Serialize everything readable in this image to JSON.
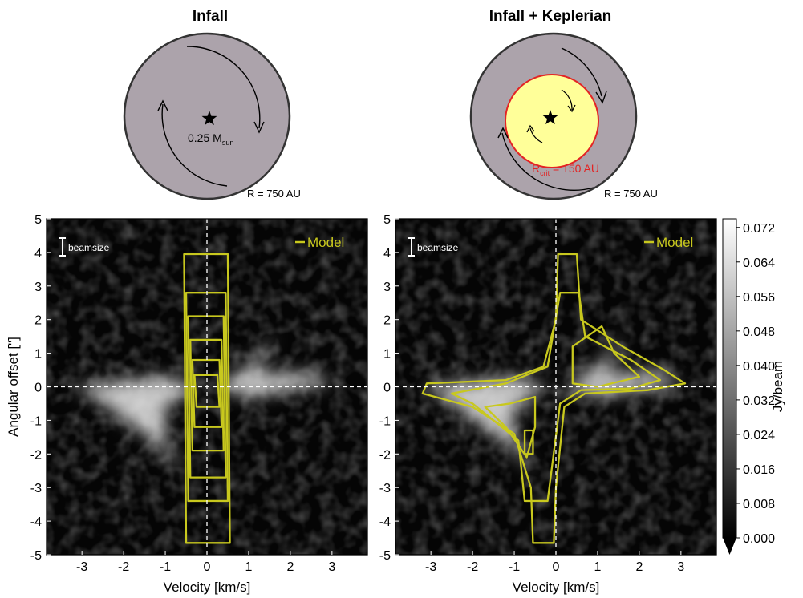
{
  "schematics": [
    {
      "title": "Infall",
      "star_label": "0.25 M",
      "star_label_sub": "sun",
      "radius_label": "R = 750 AU"
    },
    {
      "title": "Infall + Keplerian",
      "crit_label": "R",
      "crit_label_sub": "crit",
      "crit_label_rest": " = 150 AU",
      "radius_label": "R = 750 AU"
    }
  ],
  "colors": {
    "model": "#c8c81e",
    "disk_gray": "#aca3ab",
    "kepler_yellow": "#ffff99",
    "crit_red": "#e32424"
  },
  "colorbar": {
    "label": "Jy/beam",
    "ticks": [
      "0.000",
      "0.008",
      "0.016",
      "0.024",
      "0.032",
      "0.040",
      "0.048",
      "0.056",
      "0.064",
      "0.072"
    ],
    "range": [
      0,
      0.074
    ]
  },
  "chart_data": [
    {
      "type": "heatmap",
      "panel": "Infall",
      "xlabel": "Velocity [km/s]",
      "ylabel": "Angular offset [\"]",
      "xlim": [
        -3.85,
        3.85
      ],
      "ylim": [
        -5,
        5
      ],
      "xticks": [
        "-3",
        "-2",
        "-1",
        "0",
        "1",
        "2",
        "3"
      ],
      "yticks": [
        "-5",
        "-4",
        "-3",
        "-2",
        "-1",
        "0",
        "1",
        "2",
        "3",
        "4",
        "5"
      ],
      "legend": "Model",
      "beam_label": "beamsize",
      "model_contours": [
        [
          [
            -0.55,
            3.95
          ],
          [
            0.5,
            3.95
          ],
          [
            0.55,
            -4.65
          ],
          [
            -0.5,
            -4.65
          ]
        ],
        [
          [
            -0.5,
            2.8
          ],
          [
            0.45,
            2.8
          ],
          [
            0.5,
            -3.4
          ],
          [
            -0.45,
            -3.4
          ]
        ],
        [
          [
            -0.45,
            2.1
          ],
          [
            0.4,
            2.1
          ],
          [
            0.45,
            -2.7
          ],
          [
            -0.4,
            -2.7
          ]
        ],
        [
          [
            -0.4,
            1.4
          ],
          [
            0.35,
            1.4
          ],
          [
            0.4,
            -1.9
          ],
          [
            -0.35,
            -1.9
          ]
        ],
        [
          [
            -0.35,
            0.8
          ],
          [
            0.3,
            0.8
          ],
          [
            0.35,
            -1.2
          ],
          [
            -0.3,
            -1.2
          ]
        ],
        [
          [
            -0.3,
            0.35
          ],
          [
            0.25,
            0.35
          ],
          [
            0.3,
            -0.6
          ],
          [
            -0.25,
            -0.6
          ]
        ]
      ]
    },
    {
      "type": "heatmap",
      "panel": "Infall + Keplerian",
      "xlabel": "Velocity [km/s]",
      "ylabel": "",
      "xlim": [
        -3.85,
        3.85
      ],
      "ylim": [
        -5,
        5
      ],
      "xticks": [
        "-3",
        "-2",
        "-1",
        "0",
        "1",
        "2",
        "3"
      ],
      "yticks": [
        "-5",
        "-4",
        "-3",
        "-2",
        "-1",
        "0",
        "1",
        "2",
        "3",
        "4",
        "5"
      ],
      "legend": "Model",
      "beam_label": "beamsize",
      "model_contours": [
        [
          [
            0.05,
            3.95
          ],
          [
            0.5,
            3.95
          ],
          [
            0.6,
            2.0
          ],
          [
            1.6,
            1.2
          ],
          [
            2.6,
            0.5
          ],
          [
            3.1,
            0.1
          ],
          [
            2.2,
            -0.1
          ],
          [
            0.7,
            -0.2
          ],
          [
            0.2,
            -0.6
          ],
          [
            0.0,
            -3.0
          ],
          [
            -0.05,
            -4.65
          ],
          [
            -0.55,
            -4.65
          ],
          [
            -0.6,
            -3.0
          ],
          [
            -1.0,
            -1.4
          ],
          [
            -2.0,
            -0.6
          ],
          [
            -3.2,
            -0.2
          ],
          [
            -3.1,
            0.1
          ],
          [
            -1.2,
            0.2
          ],
          [
            -0.3,
            0.6
          ],
          [
            0.0,
            2.0
          ]
        ],
        [
          [
            0.1,
            2.8
          ],
          [
            0.55,
            2.8
          ],
          [
            0.7,
            1.5
          ],
          [
            1.8,
            0.8
          ],
          [
            2.5,
            0.2
          ],
          [
            1.8,
            -0.05
          ],
          [
            0.6,
            -0.1
          ],
          [
            0.1,
            -0.5
          ],
          [
            -0.2,
            -3.4
          ],
          [
            -0.75,
            -3.4
          ],
          [
            -0.9,
            -1.6
          ],
          [
            -2.0,
            -0.5
          ],
          [
            -2.5,
            -0.2
          ],
          [
            -1.2,
            0.1
          ],
          [
            -0.2,
            0.6
          ]
        ],
        [
          [
            0.4,
            1.2
          ],
          [
            1.1,
            1.8
          ],
          [
            1.4,
            1.0
          ],
          [
            2.0,
            0.3
          ],
          [
            1.0,
            0.0
          ],
          [
            0.4,
            0.1
          ]
        ],
        [
          [
            -0.5,
            -0.3
          ],
          [
            -1.1,
            -0.5
          ],
          [
            -1.7,
            -0.6
          ],
          [
            -1.2,
            -1.2
          ],
          [
            -0.7,
            -2.1
          ],
          [
            -0.5,
            -1.2
          ]
        ],
        [
          [
            -0.75,
            -1.3
          ],
          [
            -0.55,
            -1.3
          ],
          [
            -0.55,
            -2.0
          ],
          [
            -0.75,
            -2.0
          ]
        ]
      ]
    }
  ]
}
